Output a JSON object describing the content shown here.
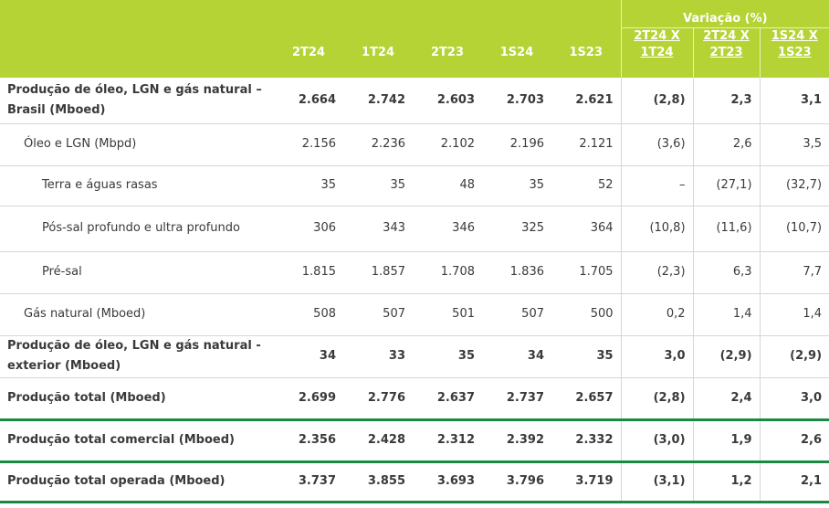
{
  "header": {
    "variation_label": "Variação (%)",
    "columns": [
      "2T24",
      "1T24",
      "2T23",
      "1S24",
      "1S23"
    ],
    "variation_columns": [
      {
        "top": "2T24 X",
        "bottom": "1T24"
      },
      {
        "top": "2T24 X",
        "bottom": "2T23"
      },
      {
        "top": "1S24 X",
        "bottom": "1S23"
      }
    ]
  },
  "rows": [
    {
      "label": "Produção de óleo, LGN e gás natural – Brasil (Mboed)",
      "values": [
        "2.664",
        "2.742",
        "2.603",
        "2.703",
        "2.621",
        "(2,8)",
        "2,3",
        "3,1"
      ]
    },
    {
      "label": "Óleo e LGN (Mbpd)",
      "values": [
        "2.156",
        "2.236",
        "2.102",
        "2.196",
        "2.121",
        "(3,6)",
        "2,6",
        "3,5"
      ]
    },
    {
      "label": "Terra e águas rasas",
      "values": [
        "35",
        "35",
        "48",
        "35",
        "52",
        "–",
        "(27,1)",
        "(32,7)"
      ]
    },
    {
      "label": "Pós-sal profundo e ultra profundo",
      "values": [
        "306",
        "343",
        "346",
        "325",
        "364",
        "(10,8)",
        "(11,6)",
        "(10,7)"
      ]
    },
    {
      "label": "Pré-sal",
      "values": [
        "1.815",
        "1.857",
        "1.708",
        "1.836",
        "1.705",
        "(2,3)",
        "6,3",
        "7,7"
      ]
    },
    {
      "label": "Gás natural (Mboed)",
      "values": [
        "508",
        "507",
        "501",
        "507",
        "500",
        "0,2",
        "1,4",
        "1,4"
      ]
    },
    {
      "label": "Produção de óleo, LGN e gás natural - exterior (Mboed)",
      "values": [
        "34",
        "33",
        "35",
        "34",
        "35",
        "3,0",
        "(2,9)",
        "(2,9)"
      ]
    },
    {
      "label": "Produção total (Mboed)",
      "values": [
        "2.699",
        "2.776",
        "2.637",
        "2.737",
        "2.657",
        "(2,8)",
        "2,4",
        "3,0"
      ]
    },
    {
      "label": "Produção total comercial (Mboed)",
      "values": [
        "2.356",
        "2.428",
        "2.312",
        "2.392",
        "2.332",
        "(3,0)",
        "1,9",
        "2,6"
      ]
    },
    {
      "label": "Produção total operada (Mboed)",
      "values": [
        "3.737",
        "3.855",
        "3.693",
        "3.796",
        "3.719",
        "(3,1)",
        "1,2",
        "2,1"
      ]
    }
  ],
  "colors": {
    "header_bg": "#b5d334",
    "accent_rule": "#1a8a43",
    "text": "#3a3a3a"
  }
}
